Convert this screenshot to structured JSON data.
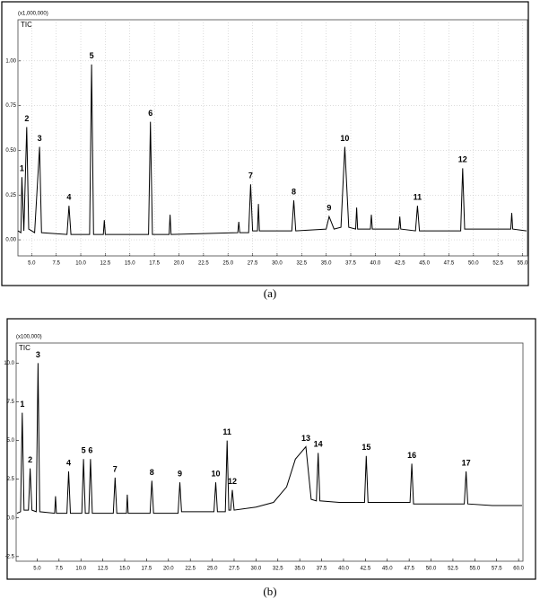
{
  "chart_data": [
    {
      "type": "line",
      "scale_label": "(x1,000,000)",
      "trace_label": "TIC",
      "caption": "(a)",
      "grid": true,
      "x": [
        3.6,
        3.9,
        4.0,
        4.2,
        4.5,
        4.7,
        5.3,
        5.8,
        6.0,
        8.6,
        8.8,
        9.0,
        10.9,
        11.1,
        11.3,
        12.3,
        12.4,
        12.5,
        16.9,
        17.1,
        17.3,
        19.0,
        19.1,
        19.2,
        26.0,
        26.1,
        26.2,
        27.1,
        27.3,
        27.5,
        28.0,
        28.1,
        28.2,
        31.5,
        31.7,
        31.9,
        35.0,
        35.3,
        35.8,
        36.5,
        36.9,
        37.3,
        38.0,
        38.1,
        38.2,
        39.5,
        39.6,
        39.7,
        42.4,
        42.5,
        42.6,
        44.1,
        44.3,
        44.5,
        48.7,
        48.9,
        49.1,
        53.8,
        53.9,
        54.0,
        55.4
      ],
      "series": [
        {
          "color": "#000000",
          "values": [
            0.05,
            0.04,
            0.35,
            0.05,
            0.63,
            0.06,
            0.04,
            0.52,
            0.04,
            0.03,
            0.19,
            0.03,
            0.03,
            0.98,
            0.03,
            0.03,
            0.11,
            0.03,
            0.03,
            0.66,
            0.03,
            0.03,
            0.14,
            0.03,
            0.04,
            0.1,
            0.04,
            0.04,
            0.31,
            0.05,
            0.05,
            0.2,
            0.05,
            0.05,
            0.22,
            0.05,
            0.06,
            0.13,
            0.06,
            0.07,
            0.52,
            0.07,
            0.06,
            0.18,
            0.06,
            0.06,
            0.14,
            0.06,
            0.06,
            0.13,
            0.06,
            0.05,
            0.19,
            0.05,
            0.05,
            0.4,
            0.06,
            0.06,
            0.15,
            0.06,
            0.05
          ]
        }
      ],
      "xlim": [
        3.6,
        55.5
      ],
      "ylim": [
        -0.09,
        1.23
      ],
      "xticks": [
        {
          "value": 5,
          "label": "5.0"
        },
        {
          "value": 7.5,
          "label": "7.5"
        },
        {
          "value": 10,
          "label": "10.0"
        },
        {
          "value": 12.5,
          "label": "12.5"
        },
        {
          "value": 15,
          "label": "15.0"
        },
        {
          "value": 17.5,
          "label": "17.5"
        },
        {
          "value": 20,
          "label": "20.0"
        },
        {
          "value": 22.5,
          "label": "22.5"
        },
        {
          "value": 25,
          "label": "25.0"
        },
        {
          "value": 27.5,
          "label": "27.5"
        },
        {
          "value": 30,
          "label": "30.0"
        },
        {
          "value": 32.5,
          "label": "32.5"
        },
        {
          "value": 35,
          "label": "35.0"
        },
        {
          "value": 37.5,
          "label": "37.5"
        },
        {
          "value": 40,
          "label": "40.0"
        },
        {
          "value": 42.5,
          "label": "42.5"
        },
        {
          "value": 45,
          "label": "45.0"
        },
        {
          "value": 47.5,
          "label": "47.5"
        },
        {
          "value": 50,
          "label": "50.0"
        },
        {
          "value": 52.5,
          "label": "52.5"
        },
        {
          "value": 55,
          "label": "55.0"
        }
      ],
      "yticks": [
        {
          "value": 0,
          "label": "0.00"
        },
        {
          "value": 0.25,
          "label": "0.25"
        },
        {
          "value": 0.5,
          "label": "0.50"
        },
        {
          "value": 0.75,
          "label": "0.75"
        },
        {
          "value": 1,
          "label": "1.00"
        }
      ],
      "annotations": [
        {
          "text": "1",
          "x": 4.0,
          "y": 0.35
        },
        {
          "text": "2",
          "x": 4.5,
          "y": 0.63
        },
        {
          "text": "3",
          "x": 5.8,
          "y": 0.52
        },
        {
          "text": "4",
          "x": 8.8,
          "y": 0.19
        },
        {
          "text": "5",
          "x": 11.1,
          "y": 0.98
        },
        {
          "text": "6",
          "x": 17.1,
          "y": 0.66
        },
        {
          "text": "7",
          "x": 27.3,
          "y": 0.31
        },
        {
          "text": "8",
          "x": 31.7,
          "y": 0.22
        },
        {
          "text": "9",
          "x": 35.3,
          "y": 0.13
        },
        {
          "text": "10",
          "x": 36.9,
          "y": 0.52
        },
        {
          "text": "11",
          "x": 44.3,
          "y": 0.19
        },
        {
          "text": "12",
          "x": 48.9,
          "y": 0.4
        }
      ]
    },
    {
      "type": "line",
      "scale_label": "(x100,000)",
      "trace_label": "TIC",
      "caption": "(b)",
      "grid": false,
      "x": [
        2.7,
        3.1,
        3.3,
        3.5,
        4.0,
        4.2,
        4.4,
        4.9,
        5.1,
        5.3,
        7.0,
        7.1,
        7.2,
        8.4,
        8.6,
        8.8,
        10.1,
        10.3,
        10.5,
        10.9,
        11.1,
        11.3,
        13.7,
        13.9,
        14.1,
        15.2,
        15.3,
        15.4,
        17.9,
        18.1,
        18.3,
        21.1,
        21.3,
        21.5,
        25.2,
        25.4,
        25.6,
        26.5,
        26.7,
        26.9,
        27.1,
        27.3,
        27.5,
        30.0,
        32.0,
        33.5,
        34.5,
        35.7,
        36.3,
        36.9,
        37.1,
        37.3,
        39.5,
        42.4,
        42.6,
        42.8,
        45.0,
        47.6,
        47.8,
        48.0,
        50.5,
        53.8,
        54.0,
        54.2,
        57.0,
        60.4
      ],
      "series": [
        {
          "color": "#000000",
          "values": [
            0.3,
            0.4,
            6.8,
            0.5,
            0.5,
            3.2,
            0.5,
            0.4,
            10.0,
            0.4,
            0.3,
            1.4,
            0.3,
            0.3,
            3.0,
            0.3,
            0.3,
            3.8,
            0.3,
            0.3,
            3.8,
            0.3,
            0.3,
            2.6,
            0.3,
            0.3,
            1.5,
            0.3,
            0.3,
            2.4,
            0.3,
            0.3,
            2.3,
            0.4,
            0.4,
            2.3,
            0.4,
            0.4,
            5.0,
            0.5,
            0.5,
            1.8,
            0.5,
            0.7,
            1.0,
            2.0,
            3.8,
            4.6,
            1.2,
            1.1,
            4.2,
            1.1,
            1.0,
            1.0,
            4.0,
            1.0,
            1.0,
            1.0,
            3.5,
            0.9,
            0.9,
            0.9,
            3.0,
            0.9,
            0.8,
            0.8
          ]
        }
      ],
      "xlim": [
        2.6,
        60.5
      ],
      "ylim": [
        -2.8,
        11.3
      ],
      "xticks": [
        {
          "value": 5,
          "label": "5.0"
        },
        {
          "value": 7.5,
          "label": "7.5"
        },
        {
          "value": 10,
          "label": "10.0"
        },
        {
          "value": 12.5,
          "label": "12.5"
        },
        {
          "value": 15,
          "label": "15.0"
        },
        {
          "value": 17.5,
          "label": "17.5"
        },
        {
          "value": 20,
          "label": "20.0"
        },
        {
          "value": 22.5,
          "label": "22.5"
        },
        {
          "value": 25,
          "label": "25.0"
        },
        {
          "value": 27.5,
          "label": "27.5"
        },
        {
          "value": 30,
          "label": "30.0"
        },
        {
          "value": 32.5,
          "label": "32.5"
        },
        {
          "value": 35,
          "label": "35.0"
        },
        {
          "value": 37.5,
          "label": "37.5"
        },
        {
          "value": 40,
          "label": "40.0"
        },
        {
          "value": 42.5,
          "label": "42.5"
        },
        {
          "value": 45,
          "label": "45.0"
        },
        {
          "value": 47.5,
          "label": "47.5"
        },
        {
          "value": 50,
          "label": "50.0"
        },
        {
          "value": 52.5,
          "label": "52.5"
        },
        {
          "value": 55,
          "label": "55.0"
        },
        {
          "value": 57.5,
          "label": "57.5"
        },
        {
          "value": 60,
          "label": "60.0"
        }
      ],
      "yticks": [
        -2.5,
        {
          "value": 0,
          "label": "0.0"
        },
        2.5,
        {
          "value": 5,
          "label": "5.0"
        },
        7.5,
        {
          "value": 10,
          "label": "10.0"
        }
      ],
      "annotations": [
        {
          "text": "1",
          "x": 3.3,
          "y": 6.8
        },
        {
          "text": "2",
          "x": 4.2,
          "y": 3.2
        },
        {
          "text": "3",
          "x": 5.1,
          "y": 10.0
        },
        {
          "text": "4",
          "x": 8.6,
          "y": 3.0
        },
        {
          "text": "5",
          "x": 10.3,
          "y": 3.8
        },
        {
          "text": "6",
          "x": 11.1,
          "y": 3.8
        },
        {
          "text": "7",
          "x": 13.9,
          "y": 2.6
        },
        {
          "text": "8",
          "x": 18.1,
          "y": 2.4
        },
        {
          "text": "9",
          "x": 21.3,
          "y": 2.3
        },
        {
          "text": "10",
          "x": 25.4,
          "y": 2.3
        },
        {
          "text": "11",
          "x": 26.7,
          "y": 5.0
        },
        {
          "text": "12",
          "x": 27.3,
          "y": 1.8
        },
        {
          "text": "13",
          "x": 35.7,
          "y": 4.6
        },
        {
          "text": "14",
          "x": 37.1,
          "y": 4.2
        },
        {
          "text": "15",
          "x": 42.6,
          "y": 4.0
        },
        {
          "text": "16",
          "x": 47.8,
          "y": 3.5
        },
        {
          "text": "17",
          "x": 54.0,
          "y": 3.0
        }
      ]
    }
  ]
}
